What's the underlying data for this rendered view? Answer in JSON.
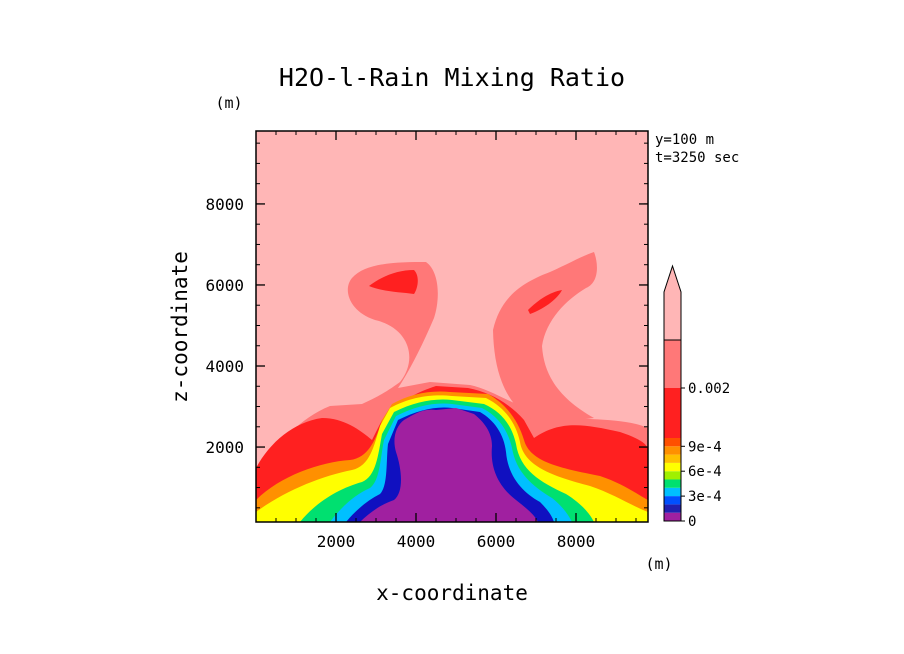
{
  "chart_data": {
    "type": "heatmap",
    "title": "H2O-l-Rain Mixing Ratio",
    "xlabel": "x-coordinate",
    "ylabel": "z-coordinate",
    "x_unit": "(m)",
    "y_unit": "(m)",
    "xlim": [
      0,
      9800
    ],
    "ylim": [
      150,
      9800
    ],
    "x_ticks": [
      2000,
      4000,
      6000,
      8000
    ],
    "y_ticks": [
      2000,
      4000,
      6000,
      8000
    ],
    "x_tick_labels": [
      "2000",
      "4000",
      "6000",
      "8000"
    ],
    "y_tick_labels": [
      "2000",
      "4000",
      "6000",
      "8000"
    ],
    "annotations": [
      "y=100 m",
      "t=3250 sec"
    ],
    "colorbar": {
      "extend": "max",
      "levels": [
        "0",
        "1e-4",
        "2e-4",
        "3e-4",
        "4e-4",
        "5e-4",
        "6e-4",
        "7e-4",
        "8e-4",
        "9e-4",
        "1e-3",
        "0.002"
      ],
      "tick_labels": [
        "0",
        "3e-4",
        "6e-4",
        "9e-4",
        "0.002"
      ],
      "colors": [
        "#a020a0",
        "#2020b0",
        "#0050ff",
        "#00c0ff",
        "#00e070",
        "#a0f000",
        "#ffff00",
        "#ffc000",
        "#ff9000",
        "#ff5000",
        "#ff2020",
        "#ff7878",
        "#ffb6b6"
      ]
    },
    "field_colors": {
      "purple": "#a020a0",
      "blue": "#1010c0",
      "red": "#ff2020",
      "salmon": "#ff7878",
      "pink": "#ffb6b6"
    }
  }
}
